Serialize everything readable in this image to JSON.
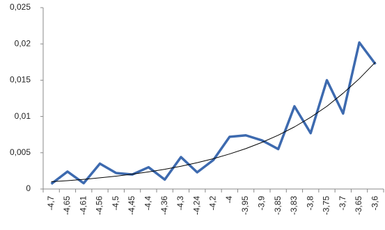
{
  "chart_data": {
    "type": "line",
    "categories": [
      "-4,7",
      "-4,65",
      "-4,61",
      "-4,56",
      "-4,5",
      "-4,45",
      "-4,4",
      "-4,36",
      "-4,3",
      "-4,24",
      "-4,2",
      "-4",
      "-3,95",
      "-3,9",
      "-3,85",
      "-3,83",
      "-3,8",
      "-3,75",
      "-3,7",
      "-3,65",
      "-3,6"
    ],
    "series": [
      {
        "color": "#3d6aaf",
        "width": 3.5,
        "values": [
          0.0007,
          0.0024,
          0.0008,
          0.0035,
          0.0022,
          0.002,
          0.003,
          0.0013,
          0.0044,
          0.0023,
          0.004,
          0.0072,
          0.0074,
          0.0067,
          0.0055,
          0.0114,
          0.0077,
          0.015,
          0.0104,
          0.0202,
          0.0172
        ]
      },
      {
        "color": "#000000",
        "width": 1,
        "values": [
          0.001,
          0.00115,
          0.00133,
          0.00154,
          0.00177,
          0.00205,
          0.00236,
          0.00272,
          0.00314,
          0.00363,
          0.00418,
          0.00483,
          0.00557,
          0.00643,
          0.00742,
          0.00856,
          0.00988,
          0.0114,
          0.0132,
          0.0152,
          0.0175
        ]
      }
    ],
    "ylim": [
      0,
      0.025
    ],
    "yticks": [
      0,
      {
        "value": 0.005,
        "label": "0,005"
      },
      {
        "value": 0.01,
        "label": "0,01"
      },
      {
        "value": 0.015,
        "label": "0,015"
      },
      {
        "value": 0.02,
        "label": "0,02"
      },
      {
        "value": 0.025,
        "label": "0,025"
      }
    ],
    "grid": false
  }
}
